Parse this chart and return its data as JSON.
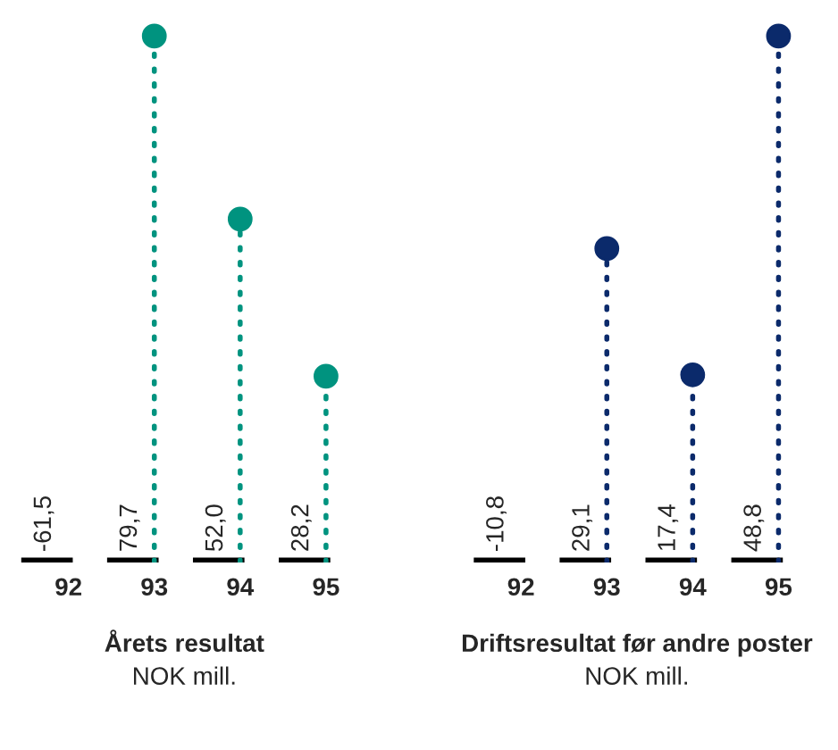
{
  "chart_data": [
    {
      "type": "lollipop",
      "title": "Årets resultat",
      "subtitle": "NOK mill.",
      "categories": [
        "92",
        "93",
        "94",
        "95"
      ],
      "values": [
        null,
        79.7,
        52.0,
        28.2
      ],
      "value_labels": [
        "-61,5",
        "79,7",
        "52,0",
        "28,2"
      ],
      "color": "#00937f",
      "marker": "circle",
      "line_style": "dotted",
      "tick_labels": "x"
    },
    {
      "type": "lollipop",
      "title": "Driftsresultat før andre poster",
      "subtitle": "NOK mill.",
      "categories": [
        "92",
        "93",
        "94",
        "95"
      ],
      "values": [
        null,
        29.1,
        17.4,
        48.8
      ],
      "value_labels": [
        "-10,8",
        "29,1",
        "17,4",
        "48,8"
      ],
      "color": "#0b2a6b",
      "marker": "circle",
      "line_style": "dotted",
      "tick_labels": "x"
    }
  ]
}
